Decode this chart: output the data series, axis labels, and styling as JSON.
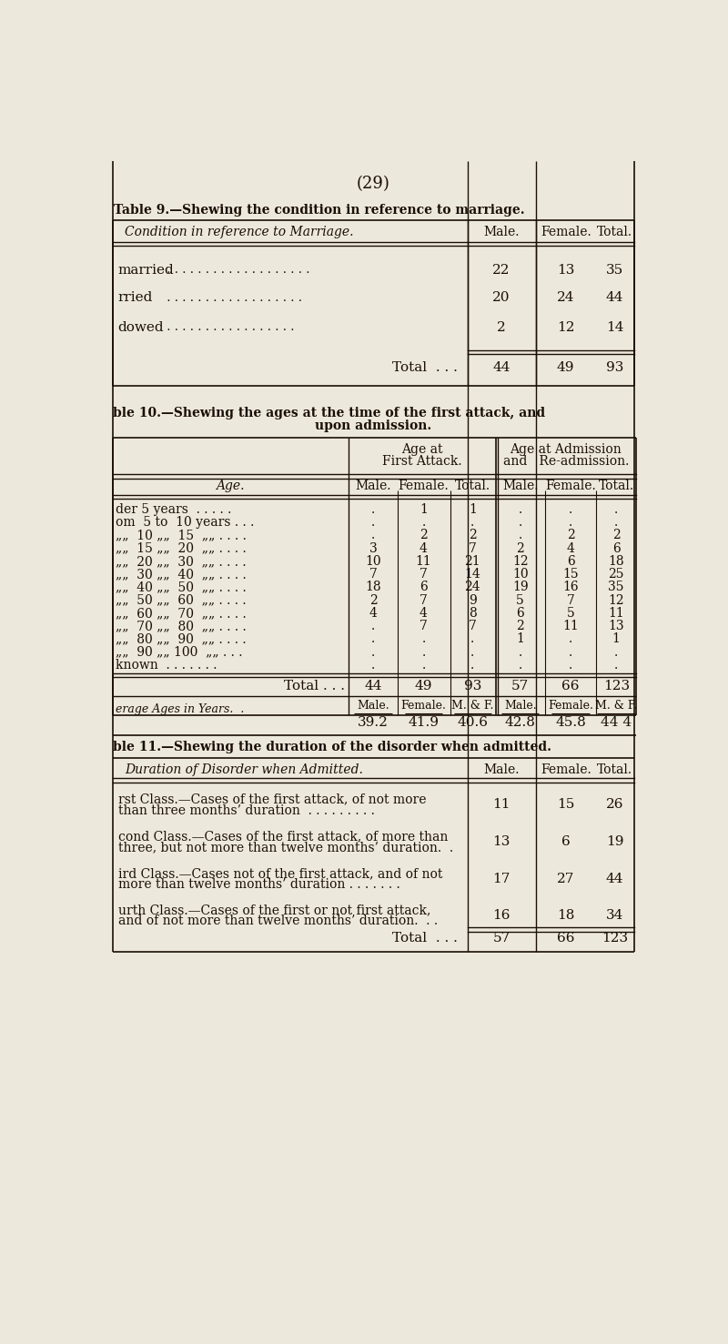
{
  "bg_color": "#ede8dc",
  "page_number": "(29)",
  "text_color": "#1a0e05",
  "line_color": "#1a0e05",
  "table9": {
    "title": "Table 9.—Shewing the condition in reference to marriage.",
    "rows": [
      [
        "married",
        "22",
        "13",
        "35"
      ],
      [
        "rried",
        "20",
        "24",
        "44"
      ],
      [
        "dowed",
        "2",
        "12",
        "14"
      ]
    ],
    "total_row": [
      "Total  . . .",
      "44",
      "49",
      "93"
    ]
  },
  "table10": {
    "title1": "ble 10.—Shewing the ages at the time of the first attack, and",
    "title2": "upon admission.",
    "age_labels": [
      "der 5 years  . . . . .",
      "om  5 to  10 years . . .",
      "„„  10 „„  15  „„ . . . .",
      "„„  15 „„  20  „„ . . . .",
      "„„  20 „„  30  „„ . . . .",
      "„„  30 „„  40  „„ . . . .",
      "„„  40 „„  50  „„ . . . .",
      "„„  50 „„  60  „„ . . . .",
      "„„  60 „„  70  „„ . . . .",
      "„„  70 „„  80  „„ . . . .",
      "„„  80 „„  90  „„ . . . .",
      "„„  90 „„ 100  „„ . . .",
      "known  . . . . . . ."
    ],
    "rows": [
      [
        ".",
        "1",
        "1",
        ".",
        ".",
        "."
      ],
      [
        ".",
        ".",
        ".",
        ".",
        ".",
        "."
      ],
      [
        ".",
        "2",
        "2",
        ".",
        "2",
        "2"
      ],
      [
        "3",
        "4",
        "7",
        "2",
        "4",
        "6"
      ],
      [
        "10",
        "11",
        "21",
        "12",
        "6",
        "18"
      ],
      [
        "7",
        "7",
        "14",
        "10",
        "15",
        "25"
      ],
      [
        "18",
        "6",
        "24",
        "19",
        "16",
        "35"
      ],
      [
        "2",
        "7",
        "9",
        "5",
        "7",
        "12"
      ],
      [
        "4",
        "4",
        "8",
        "6",
        "5",
        "11"
      ],
      [
        ".",
        "7",
        "7",
        "2",
        "11",
        "13"
      ],
      [
        ".",
        ".",
        ".",
        "1",
        ".",
        "1"
      ],
      [
        ".",
        ".",
        ".",
        ".",
        ".",
        "."
      ],
      [
        ".",
        ".",
        ".",
        ".",
        ".",
        "."
      ]
    ],
    "total_row": [
      "44",
      "49",
      "93",
      "57",
      "66",
      "123"
    ],
    "avg_row": [
      "39.2",
      "41.9",
      "40.6",
      "42.8",
      "45.8",
      "44 4"
    ]
  },
  "table11": {
    "title": "ble 11.—Shewing the duration of the disorder when admitted.",
    "rows": [
      [
        "rst Class.—Cases of the first attack, of not more",
        "than three months’ duration  . . . . . . . . .",
        "11",
        "15",
        "26"
      ],
      [
        "cond Class.—Cases of the first attack, of more than",
        "three, but not more than twelve months’ duration.  .",
        "13",
        "6",
        "19"
      ],
      [
        "ird Class.—Cases not of the first attack, and of not",
        "more than twelve months’ duration . . . . . . .",
        "17",
        "27",
        "44"
      ],
      [
        "urth Class.—Cases of the first or not first attack,",
        "and of not more than twelve months’ duration.  . .",
        "16",
        "18",
        "34"
      ]
    ],
    "total_row": [
      "Total  . . .",
      "57",
      "66",
      "123"
    ]
  }
}
